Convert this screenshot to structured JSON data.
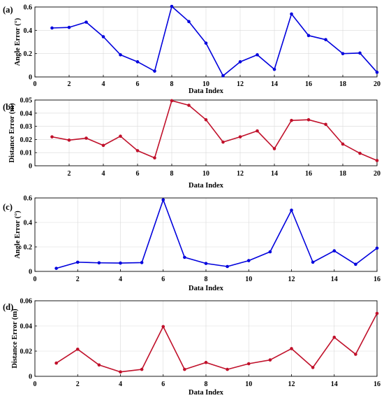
{
  "chart_data": [
    {
      "type": "line",
      "panel_label": "(a)",
      "xlabel": "Data Index",
      "ylabel": "Angle Error (°)",
      "xlim": [
        0,
        20
      ],
      "ylim": [
        0,
        0.6
      ],
      "xticks": [
        0,
        2,
        4,
        6,
        8,
        10,
        12,
        14,
        16,
        18,
        20
      ],
      "yticks": [
        0,
        0.2,
        0.4,
        0.6
      ],
      "xtick_labels": [
        "0",
        "2",
        "4",
        "6",
        "8",
        "10",
        "12",
        "14",
        "16",
        "18",
        "20"
      ],
      "ytick_labels": [
        "0",
        "0.2",
        "0.4",
        "0.6"
      ],
      "grid": true,
      "color": "#0000dd",
      "x": [
        1,
        2,
        3,
        4,
        5,
        6,
        7,
        8,
        9,
        10,
        11,
        12,
        13,
        14,
        15,
        16,
        17,
        18,
        19,
        20
      ],
      "values": [
        0.42,
        0.425,
        0.47,
        0.345,
        0.19,
        0.13,
        0.05,
        0.605,
        0.475,
        0.29,
        0.01,
        0.13,
        0.19,
        0.065,
        0.54,
        0.355,
        0.32,
        0.2,
        0.205,
        0.04
      ]
    },
    {
      "type": "line",
      "panel_label": "(b)",
      "xlabel": "Data Index",
      "ylabel": "Distance Error (m)",
      "xlim": [
        0,
        20
      ],
      "ylim": [
        0,
        0.05
      ],
      "xticks": [
        2,
        4,
        6,
        8,
        10,
        12,
        14,
        16,
        18,
        20
      ],
      "yticks": [
        0,
        0.01,
        0.02,
        0.03,
        0.04,
        0.05
      ],
      "xtick_labels": [
        "2",
        "4",
        "6",
        "8",
        "10",
        "12",
        "14",
        "16",
        "18",
        "20"
      ],
      "ytick_labels": [
        "0",
        "0.01",
        "0.02",
        "0.03",
        "0.04",
        "0.05"
      ],
      "grid": true,
      "color": "#c0102a",
      "x": [
        1,
        2,
        3,
        4,
        5,
        6,
        7,
        8,
        9,
        10,
        11,
        12,
        13,
        14,
        15,
        16,
        17,
        18,
        19,
        20
      ],
      "values": [
        0.022,
        0.0195,
        0.021,
        0.0155,
        0.0225,
        0.0115,
        0.006,
        0.0495,
        0.046,
        0.035,
        0.018,
        0.022,
        0.0265,
        0.013,
        0.0345,
        0.035,
        0.0315,
        0.0165,
        0.0095,
        0.004
      ]
    },
    {
      "type": "line",
      "panel_label": "(c)",
      "xlabel": "Data Index",
      "ylabel": "Angle Error (°)",
      "xlim": [
        0,
        16
      ],
      "ylim": [
        0,
        0.6
      ],
      "xticks": [
        0,
        2,
        4,
        6,
        8,
        10,
        12,
        14,
        16
      ],
      "yticks": [
        0,
        0.2,
        0.4,
        0.6
      ],
      "xtick_labels": [
        "0",
        "2",
        "4",
        "6",
        "8",
        "10",
        "12",
        "14",
        "16"
      ],
      "ytick_labels": [
        "0",
        "0.2",
        "0.4",
        "0.6"
      ],
      "grid": true,
      "color": "#0000dd",
      "x": [
        1,
        2,
        3,
        4,
        5,
        6,
        7,
        8,
        9,
        10,
        11,
        12,
        13,
        14,
        15,
        16
      ],
      "values": [
        0.025,
        0.075,
        0.07,
        0.068,
        0.072,
        0.585,
        0.115,
        0.065,
        0.04,
        0.088,
        0.16,
        0.5,
        0.075,
        0.168,
        0.058,
        0.19
      ]
    },
    {
      "type": "line",
      "panel_label": "(d)",
      "xlabel": "Data Index",
      "ylabel": "Distance Error (m)",
      "xlim": [
        0,
        16
      ],
      "ylim": [
        0,
        0.06
      ],
      "xticks": [
        0,
        2,
        4,
        6,
        8,
        10,
        12,
        14,
        16
      ],
      "yticks": [
        0,
        0.02,
        0.04,
        0.06
      ],
      "xtick_labels": [
        "0",
        "2",
        "4",
        "6",
        "8",
        "10",
        "12",
        "14",
        "16"
      ],
      "ytick_labels": [
        "0",
        "0.02",
        "0.04",
        "0.06"
      ],
      "grid": true,
      "color": "#c0102a",
      "x": [
        1,
        2,
        3,
        4,
        5,
        6,
        7,
        8,
        9,
        10,
        11,
        12,
        13,
        14,
        15,
        16
      ],
      "values": [
        0.0105,
        0.0215,
        0.009,
        0.0035,
        0.0055,
        0.0395,
        0.0055,
        0.011,
        0.0055,
        0.01,
        0.013,
        0.022,
        0.007,
        0.031,
        0.0175,
        0.05
      ]
    }
  ]
}
